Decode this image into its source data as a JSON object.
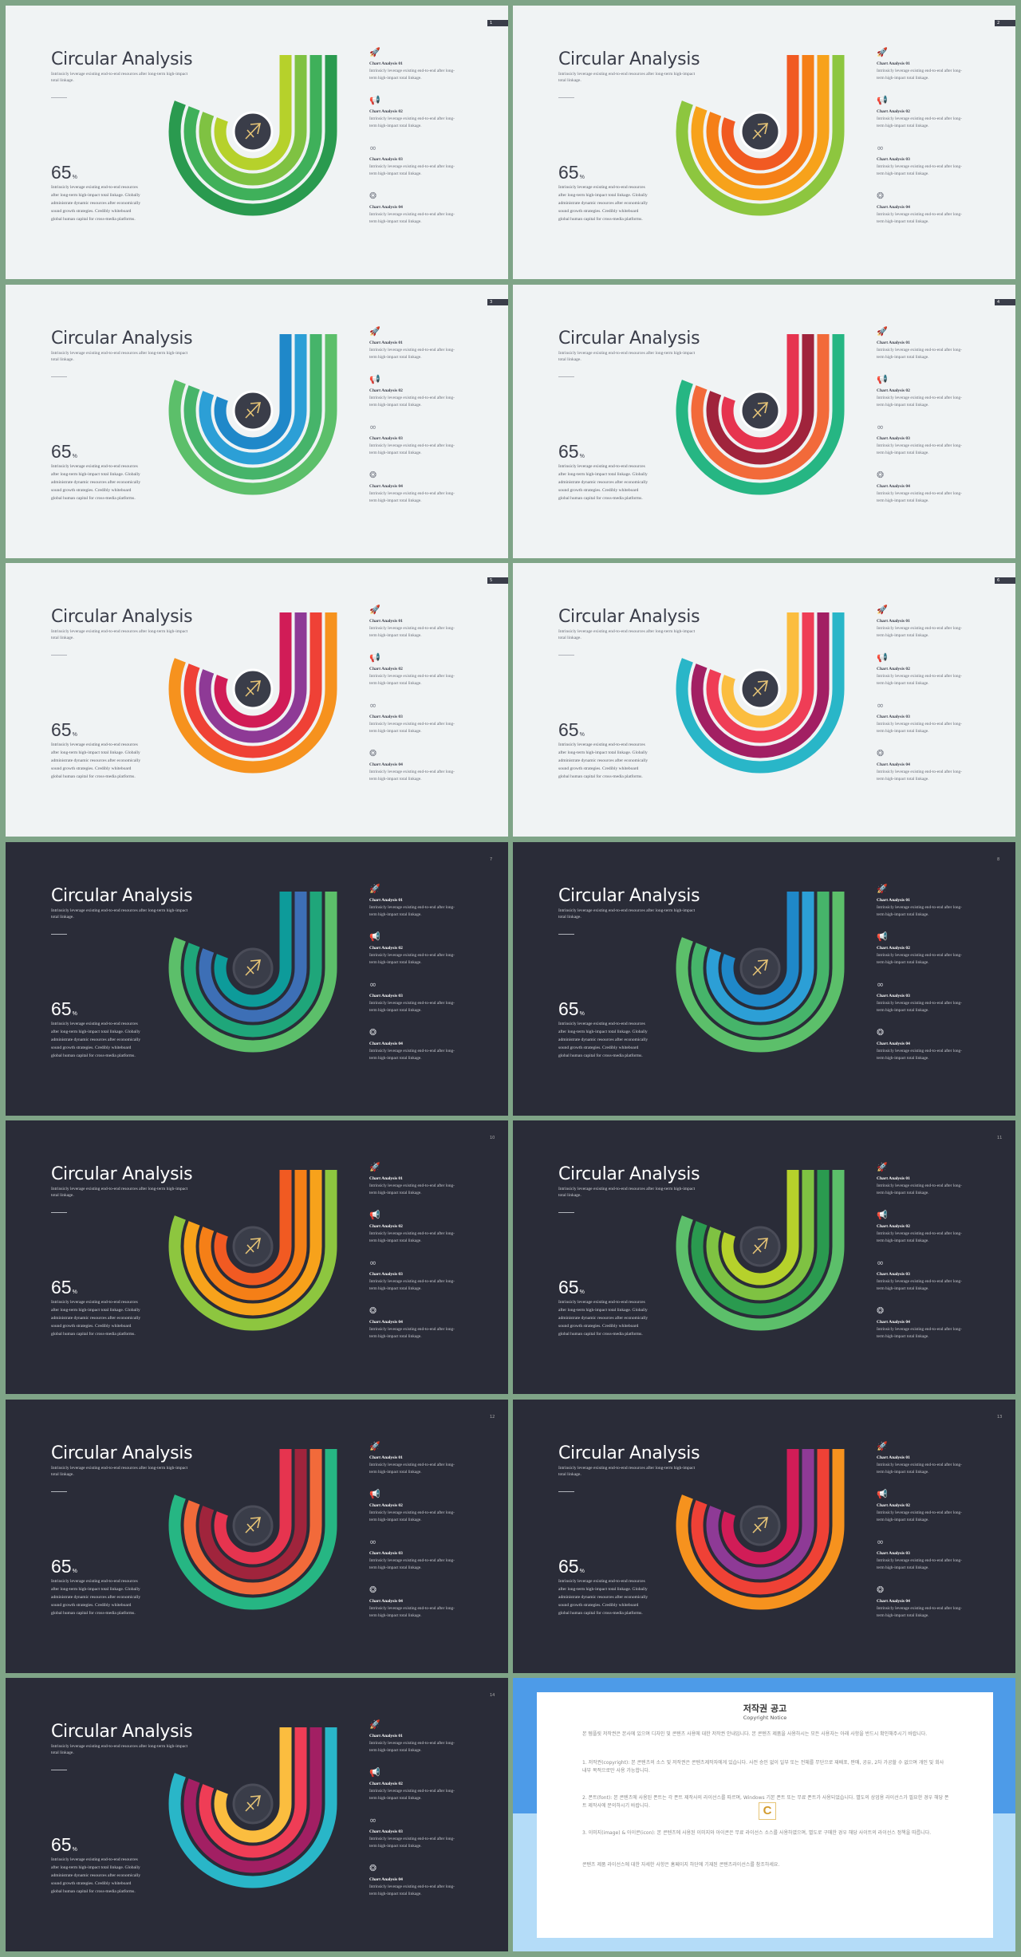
{
  "slide_common": {
    "title": "Circular Analysis",
    "subtitle": "Intrinsicly leverage existing end-to-end resources after long-term high-impact total linkage.",
    "big_number": "65",
    "big_unit": "%",
    "paragraph": "Intrinsicly leverage existing end-to-end resources after long-term high-impact total linkage. Globally administrate dynamic resources after economically sound growth strategies. Credibly whiteboard global human capital for cross-media platforms.",
    "items": [
      {
        "icon": "rocket-icon",
        "glyph": "🚀",
        "heading": "Chart Analysis 01",
        "text": "Intrinsicly leverage existing end-to-end after long-term high-impact total linkage."
      },
      {
        "icon": "megaphone-icon",
        "glyph": "📢",
        "heading": "Chart Analysis 02",
        "text": "Intrinsicly leverage existing end-to-end after long-term high-impact total linkage."
      },
      {
        "icon": "binoculars-icon",
        "glyph": "∞",
        "heading": "Chart Analysis 03",
        "text": "Intrinsicly leverage existing end-to-end after long-term high-impact total linkage."
      },
      {
        "icon": "brain-icon",
        "glyph": "❂",
        "heading": "Chart Analysis 04",
        "text": "Intrinsicly leverage existing end-to-end after long-term high-impact total linkage."
      }
    ]
  },
  "slides": [
    {
      "theme": "light",
      "page": "1",
      "colors": [
        "#2a9a4f",
        "#3fb05a",
        "#7fc242",
        "#b6d12b"
      ]
    },
    {
      "theme": "light",
      "page": "2",
      "colors": [
        "#8dc63f",
        "#f7a21b",
        "#f57f17",
        "#f15a22"
      ]
    },
    {
      "theme": "light",
      "page": "3",
      "colors": [
        "#5cbf6a",
        "#46b46a",
        "#2c9fd6",
        "#1f88c9"
      ]
    },
    {
      "theme": "light",
      "page": "4",
      "colors": [
        "#26b683",
        "#f26a3a",
        "#a0243c",
        "#e6344f"
      ]
    },
    {
      "theme": "light",
      "page": "5",
      "colors": [
        "#f6921e",
        "#ef4136",
        "#8e3a96",
        "#d11c57"
      ]
    },
    {
      "theme": "light",
      "page": "6",
      "colors": [
        "#29b6c8",
        "#a21f63",
        "#ef3d56",
        "#fbbd3f"
      ]
    },
    {
      "theme": "dark",
      "page": "7",
      "colors": [
        "#5cbf6a",
        "#1fa67a",
        "#3d6fb6",
        "#0d9b9a"
      ]
    },
    {
      "theme": "dark",
      "page": "8",
      "colors": [
        "#5cbf6a",
        "#46b46a",
        "#2c9fd6",
        "#1f88c9"
      ]
    },
    {
      "theme": "dark",
      "page": "10",
      "colors": [
        "#8dc63f",
        "#f7a21b",
        "#f57f17",
        "#f15a22"
      ]
    },
    {
      "theme": "dark",
      "page": "11",
      "colors": [
        "#5cbf6a",
        "#2a9a4f",
        "#7fc242",
        "#b6d12b"
      ]
    },
    {
      "theme": "dark",
      "page": "12",
      "colors": [
        "#26b683",
        "#f26a3a",
        "#a0243c",
        "#e6344f"
      ]
    },
    {
      "theme": "dark",
      "page": "13",
      "colors": [
        "#f6921e",
        "#ef4136",
        "#8e3a96",
        "#d11c57"
      ]
    },
    {
      "theme": "dark",
      "page": "14",
      "colors": [
        "#29b6c8",
        "#a21f63",
        "#ef3d56",
        "#fbbd3f"
      ]
    }
  ],
  "copyright": {
    "title": "저작권 공고",
    "subtitle": "Copyright Notice",
    "intro": "본 템플릿 저작권은 본사에 있으며 디자인 및 콘텐츠 사용에 대한 저작권 안내입니다. 본 콘텐츠 제품을 사용하시는 모든 사용자는 아래 사항을 반드시 확인해주시기 바랍니다.",
    "p1": "1. 저작권(copyright): 본 콘텐츠의 소스 및 저작권은 콘텐츠제작자에게 있습니다. 사전 승인 없이 일부 또는 전체를 무단으로 재배포, 판매, 공유, 2차 가공할 수 없으며 개인 및 회사 내부 목적으로만 사용 가능합니다.",
    "p2": "2. 폰트(font): 본 콘텐츠에 사용된 폰트는 각 폰트 제작사의 라이선스를 따르며, Windows 기본 폰트 또는 무료 폰트가 사용되었습니다. 별도의 상업용 라이선스가 필요한 경우 해당 폰트 제작사에 문의하시기 바랍니다.",
    "p3": "3. 이미지(image) & 아이콘(icon): 본 콘텐츠에 사용된 이미지와 아이콘은 무료 라이선스 소스를 사용하였으며, 별도로 구매한 경우 해당 사이트의 라이선스 정책을 따릅니다.",
    "outro": "콘텐츠 제품 라이선스에 대한 자세한 사항은 홈페이지 하단에 기재된 콘텐츠라이선스를 참조하세요."
  }
}
